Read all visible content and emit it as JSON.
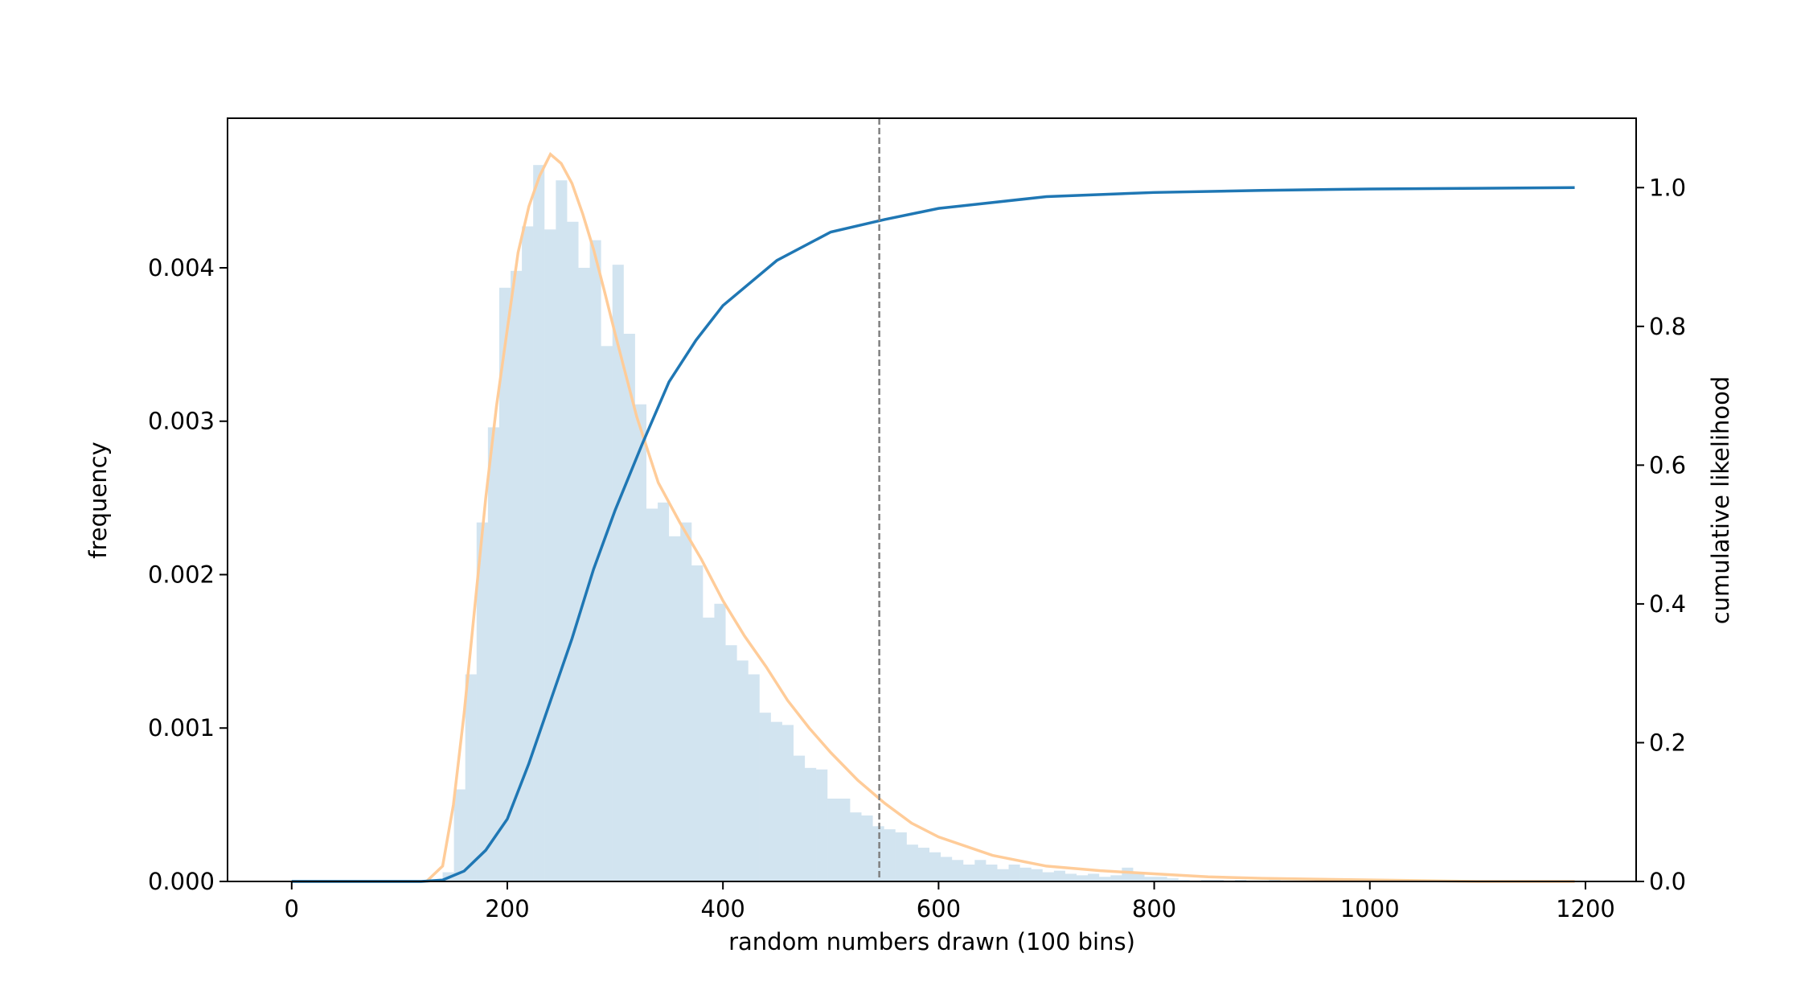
{
  "chart_data": {
    "type": "histogram",
    "xlabel": "random numbers drawn (100 bins)",
    "ylabel": "frequency",
    "y2label": "cumulative likelihood",
    "bins": [
      140,
      150.5,
      161,
      171.5,
      182,
      192.5,
      203,
      213.5,
      224,
      234.5,
      245,
      255.5,
      266,
      276.5,
      287,
      297.5,
      308,
      318.5,
      329,
      339.5,
      350,
      360.5,
      371,
      381.5,
      392,
      402.5,
      413,
      423.5,
      434,
      444.5,
      455,
      465.5,
      476,
      486.5,
      497,
      507.5,
      518,
      528.5,
      539,
      549.5,
      560,
      570.5,
      581,
      591.5,
      602,
      612.5,
      623,
      633.5,
      644,
      654.5,
      665,
      675.5,
      686,
      696.5,
      707,
      717.5,
      728,
      738.5,
      749,
      759.5,
      770,
      780.5,
      791,
      801.5,
      812,
      822.5,
      833,
      843.5,
      854,
      864.5,
      875,
      885.5,
      896,
      906.5,
      917,
      927.5,
      938,
      948.5,
      959,
      969.5,
      980,
      990.5,
      1001,
      1011.5,
      1022,
      1032.5,
      1043,
      1053.5,
      1064,
      1074.5,
      1085,
      1095.5,
      1106,
      1116.5,
      1127,
      1137.5,
      1148,
      1158.5,
      1169,
      1179.5,
      1190
    ],
    "values": [
      6e-05,
      0.0006,
      0.00135,
      0.00234,
      0.00296,
      0.00387,
      0.00398,
      0.00427,
      0.00467,
      0.00425,
      0.00457,
      0.0043,
      0.004,
      0.00418,
      0.00349,
      0.00402,
      0.00357,
      0.00311,
      0.00243,
      0.00247,
      0.00225,
      0.00234,
      0.00206,
      0.00172,
      0.00181,
      0.00154,
      0.00144,
      0.00135,
      0.0011,
      0.00104,
      0.00102,
      0.00082,
      0.00074,
      0.00073,
      0.00054,
      0.00054,
      0.00045,
      0.00043,
      0.00036,
      0.00034,
      0.00032,
      0.00024,
      0.00022,
      0.00019,
      0.00016,
      0.00014,
      0.00011,
      0.00014,
      0.00011,
      8e-05,
      0.00011,
      9e-05,
      8e-05,
      6e-05,
      7e-05,
      5e-05,
      4e-05,
      5e-05,
      3e-05,
      4e-05,
      9e-05,
      5e-05,
      3e-05,
      3e-05,
      2e-05,
      1e-05,
      0,
      1e-05,
      1e-05,
      0,
      1e-05,
      0,
      0,
      1e-05,
      0,
      0,
      0,
      1e-05,
      0,
      0,
      0,
      0,
      0,
      0,
      0,
      0,
      0,
      0,
      0,
      0,
      0,
      0,
      0,
      0,
      0,
      0,
      0,
      0,
      0,
      0
    ],
    "color": "#1f77b4",
    "opacity": 0.2,
    "lines": [
      {
        "x": [
          125,
          140,
          150,
          160,
          170,
          180,
          190,
          200,
          210,
          220,
          230,
          240,
          250,
          260,
          270,
          280,
          290,
          300,
          320,
          340,
          360,
          380,
          400,
          420,
          440,
          460,
          480,
          500,
          525,
          550,
          575,
          600,
          650,
          700,
          750,
          800,
          850,
          900,
          1000,
          1100,
          1190
        ],
        "values": [
          0,
          0.0001,
          0.0005,
          0.0011,
          0.0018,
          0.0025,
          0.0031,
          0.0036,
          0.0041,
          0.0044,
          0.0046,
          0.00474,
          0.00468,
          0.00455,
          0.00435,
          0.00412,
          0.00385,
          0.00357,
          0.00303,
          0.0026,
          0.00234,
          0.0021,
          0.00183,
          0.0016,
          0.0014,
          0.00118,
          0.001,
          0.00084,
          0.00066,
          0.00051,
          0.00038,
          0.00029,
          0.00017,
          0.0001,
          7e-05,
          5e-05,
          3e-05,
          2e-05,
          1e-05,
          0,
          0
        ],
        "color": "#ffcc99",
        "axis": "y"
      },
      {
        "x": [
          0,
          100,
          120,
          140,
          160,
          180,
          200,
          220,
          240,
          260,
          280,
          300,
          325,
          350,
          375,
          400,
          450,
          500,
          550,
          600,
          700,
          800,
          900,
          1000,
          1100,
          1190
        ],
        "values": [
          0,
          0,
          0,
          0.002,
          0.015,
          0.045,
          0.09,
          0.17,
          0.26,
          0.35,
          0.45,
          0.535,
          0.63,
          0.72,
          0.78,
          0.83,
          0.895,
          0.936,
          0.954,
          0.97,
          0.987,
          0.993,
          0.996,
          0.998,
          0.999,
          1.0
        ],
        "color": "#1f77b4",
        "axis": "y2"
      }
    ],
    "vline": 545,
    "vline_color": "#808080",
    "xlim": [
      -59.5,
      1247
    ],
    "ylim": [
      0,
      0.004975
    ],
    "y2lim": [
      0,
      1.1
    ],
    "xticks": [
      0,
      200,
      400,
      600,
      800,
      1000,
      1200
    ],
    "yticks": [
      {
        "value": 0,
        "label": "0.000"
      },
      {
        "value": 0.001,
        "label": "0.001"
      },
      {
        "value": 0.002,
        "label": "0.002"
      },
      {
        "value": 0.003,
        "label": "0.003"
      },
      {
        "value": 0.004,
        "label": "0.004"
      }
    ],
    "y2ticks": [
      {
        "value": 0,
        "label": "0.0"
      },
      0.2,
      0.4,
      0.6,
      0.8,
      {
        "value": 1,
        "label": "1.0"
      }
    ],
    "grid": false
  }
}
